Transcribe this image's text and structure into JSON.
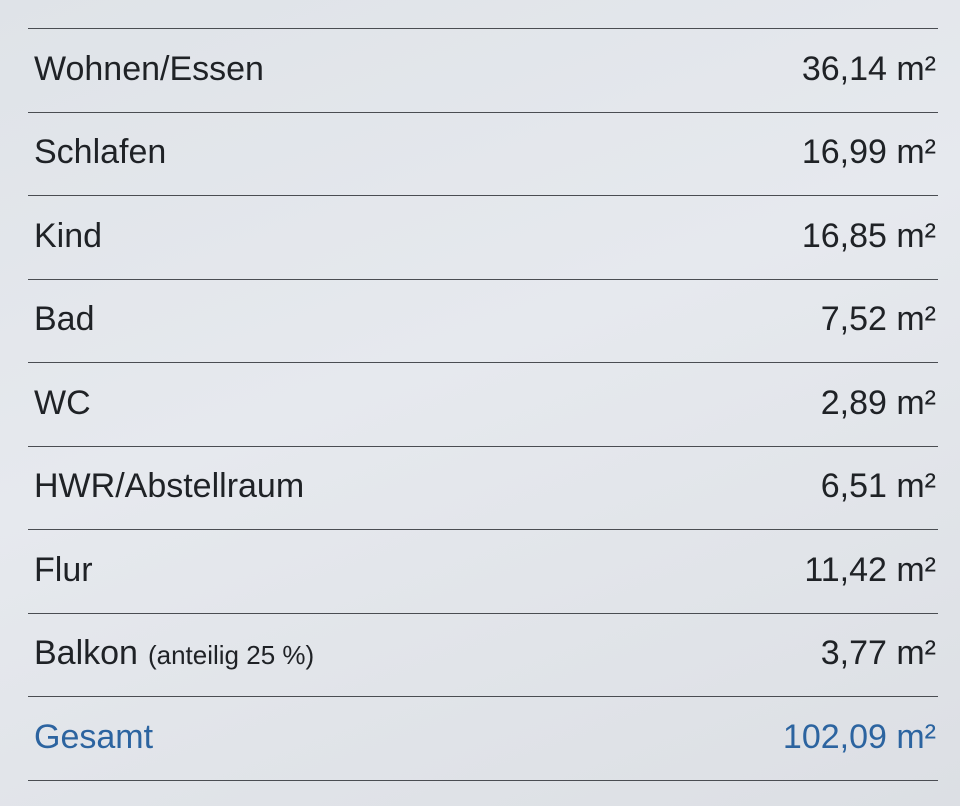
{
  "table": {
    "rows": [
      {
        "room": "Wohnen/Essen",
        "area": "36,14 m²"
      },
      {
        "room": "Schlafen",
        "area": "16,99 m²"
      },
      {
        "room": "Kind",
        "area": "16,85 m²"
      },
      {
        "room": "Bad",
        "area": "7,52 m²"
      },
      {
        "room": "WC",
        "area": "2,89 m²"
      },
      {
        "room": "HWR/Abstellraum",
        "area": "6,51 m²"
      },
      {
        "room": "Flur",
        "area": "11,42 m²"
      },
      {
        "room": "Balkon",
        "note": "(anteilig 25 %)",
        "area": "3,77 m²"
      }
    ],
    "total": {
      "label": "Gesamt",
      "area": "102,09 m²"
    }
  }
}
